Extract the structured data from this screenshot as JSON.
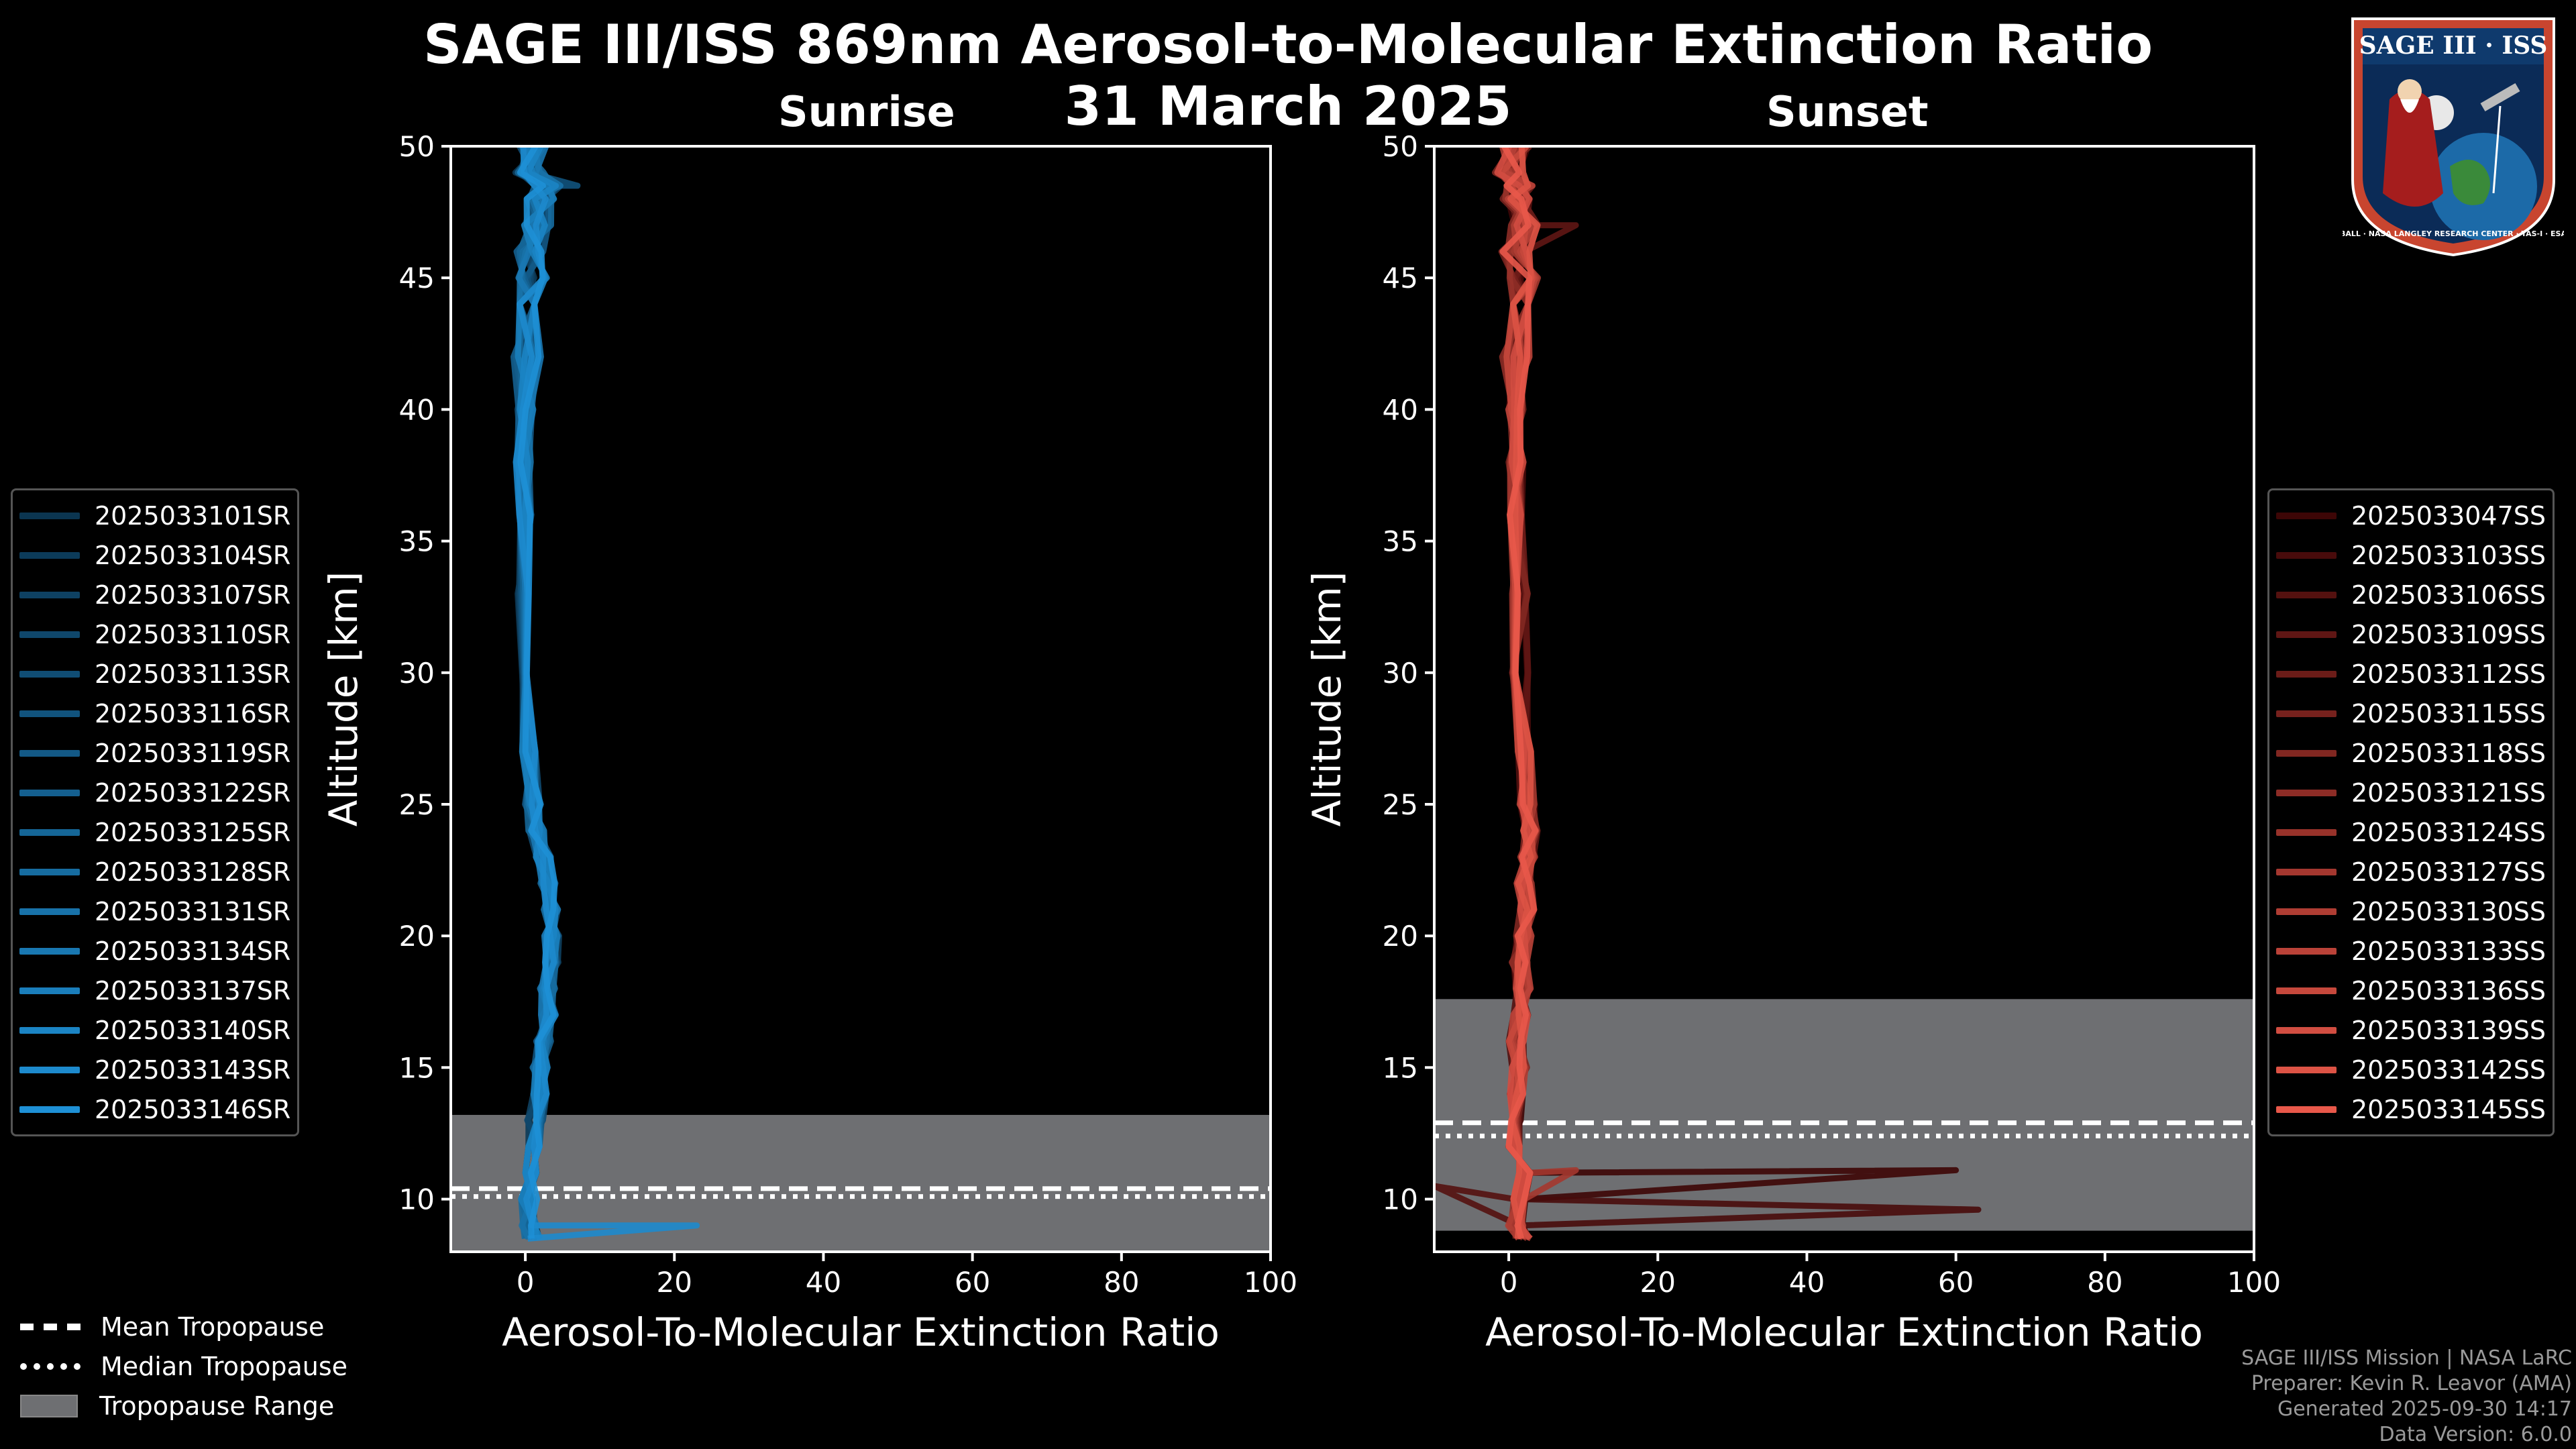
{
  "title_line1": "SAGE III/ISS 869nm Aerosol-to-Molecular Extinction Ratio",
  "title_line2": "31 March 2025",
  "colors": {
    "sunrise": "#1e90d6",
    "sunset": "#e8584a",
    "sunset_dark": "#4a0a0a",
    "tropo_fill": "#6e6f72"
  },
  "legend_misc": {
    "mean": "Mean Tropopause",
    "median": "Median Tropopause",
    "range": "Tropopause Range"
  },
  "footer": {
    "line1": "SAGE III/ISS Mission | NASA LaRC",
    "line2": "Preparer: Kevin R. Leavor (AMA)",
    "line3": "Generated 2025-09-30 14:17",
    "line4": "Data Version: 6.0.0"
  },
  "logo": {
    "text": "SAGE III · ISS",
    "ring_text": "BALL · NASA LANGLEY RESEARCH CENTER · TAS-I · ESA"
  },
  "chart_data": [
    {
      "type": "line",
      "title": "Sunrise",
      "xlabel": "Aerosol-To-Molecular Extinction Ratio",
      "ylabel": "Altitude [km]",
      "xlim": [
        -10,
        100
      ],
      "ylim": [
        8,
        50
      ],
      "xticks": [
        "0",
        "20",
        "40",
        "60",
        "80",
        "100"
      ],
      "yticks": [
        "10",
        "15",
        "20",
        "25",
        "30",
        "35",
        "40",
        "45",
        "50"
      ],
      "tropopause": {
        "min_km": 8,
        "max_km": 13.2,
        "mean_km": 10.4,
        "median_km": 10.1
      },
      "series_names": [
        "2025033101SR",
        "2025033104SR",
        "2025033107SR",
        "2025033110SR",
        "2025033113SR",
        "2025033116SR",
        "2025033119SR",
        "2025033122SR",
        "2025033125SR",
        "2025033128SR",
        "2025033131SR",
        "2025033134SR",
        "2025033137SR",
        "2025033140SR",
        "2025033143SR",
        "2025033146SR"
      ],
      "altitudes_km": [
        8.5,
        9,
        10,
        11,
        12,
        13,
        14,
        15,
        16,
        17,
        18,
        19,
        20,
        21,
        22,
        23,
        24,
        25,
        27,
        30,
        33,
        36,
        38,
        40,
        42,
        44,
        45,
        46,
        47,
        48,
        48.5,
        49,
        50
      ],
      "profile_typical": [
        1,
        0.5,
        0.5,
        1,
        1,
        1.3,
        1.8,
        2,
        2.5,
        3,
        3,
        3.5,
        3.5,
        3.5,
        3,
        2.5,
        1.5,
        1,
        0.5,
        0,
        0,
        0,
        -0.2,
        0,
        0.3,
        0.5,
        1,
        0.5,
        1.5,
        2,
        3,
        0.5,
        1
      ],
      "highlight": {
        "series": "2025033143SR",
        "peak_altitude_km": 9,
        "peak_ratio": 23
      },
      "sunrise_spike": {
        "series": "2025033116SR",
        "altitude_km": 48.5,
        "ratio": 7
      }
    },
    {
      "type": "line",
      "title": "Sunset",
      "xlabel": "Aerosol-To-Molecular Extinction Ratio",
      "ylabel": "Altitude [km]",
      "xlim": [
        -10,
        100
      ],
      "ylim": [
        8,
        50
      ],
      "xticks": [
        "0",
        "20",
        "40",
        "60",
        "80",
        "100"
      ],
      "yticks": [
        "10",
        "15",
        "20",
        "25",
        "30",
        "35",
        "40",
        "45",
        "50"
      ],
      "tropopause": {
        "min_km": 8.8,
        "max_km": 17.6,
        "mean_km": 12.9,
        "median_km": 12.4
      },
      "series_names": [
        "2025033047SS",
        "2025033103SS",
        "2025033106SS",
        "2025033109SS",
        "2025033112SS",
        "2025033115SS",
        "2025033118SS",
        "2025033121SS",
        "2025033124SS",
        "2025033127SS",
        "2025033130SS",
        "2025033133SS",
        "2025033136SS",
        "2025033139SS",
        "2025033142SS",
        "2025033145SS"
      ],
      "altitudes_km": [
        8.5,
        9,
        10,
        11,
        12,
        13,
        14,
        15,
        16,
        17,
        18,
        19,
        20,
        21,
        22,
        23,
        24,
        25,
        27,
        30,
        33,
        36,
        38,
        40,
        42,
        44,
        45,
        46,
        47,
        48,
        48.5,
        49,
        50
      ],
      "profile_typical": [
        2,
        1,
        1.5,
        2,
        1,
        1,
        1,
        1.5,
        1,
        1.5,
        2,
        1.5,
        2,
        2.5,
        2,
        2.5,
        3,
        2.5,
        2,
        1.5,
        1.5,
        1,
        1,
        1,
        1,
        1.5,
        2,
        1,
        2,
        1,
        1.5,
        0,
        1
      ],
      "spikes": [
        {
          "series": "2025033047SS",
          "altitude_km": 11.1,
          "ratio": 60
        },
        {
          "series": "2025033103SS",
          "altitude_km": 9.6,
          "ratio": 63
        },
        {
          "series": "2025033106SS",
          "altitude_km": 10.5,
          "ratio": -10
        },
        {
          "series": "2025033127SS",
          "altitude_km": 11.1,
          "ratio": 9
        },
        {
          "series": "2025033109SS",
          "altitude_km": 47,
          "ratio": 9
        }
      ]
    }
  ]
}
